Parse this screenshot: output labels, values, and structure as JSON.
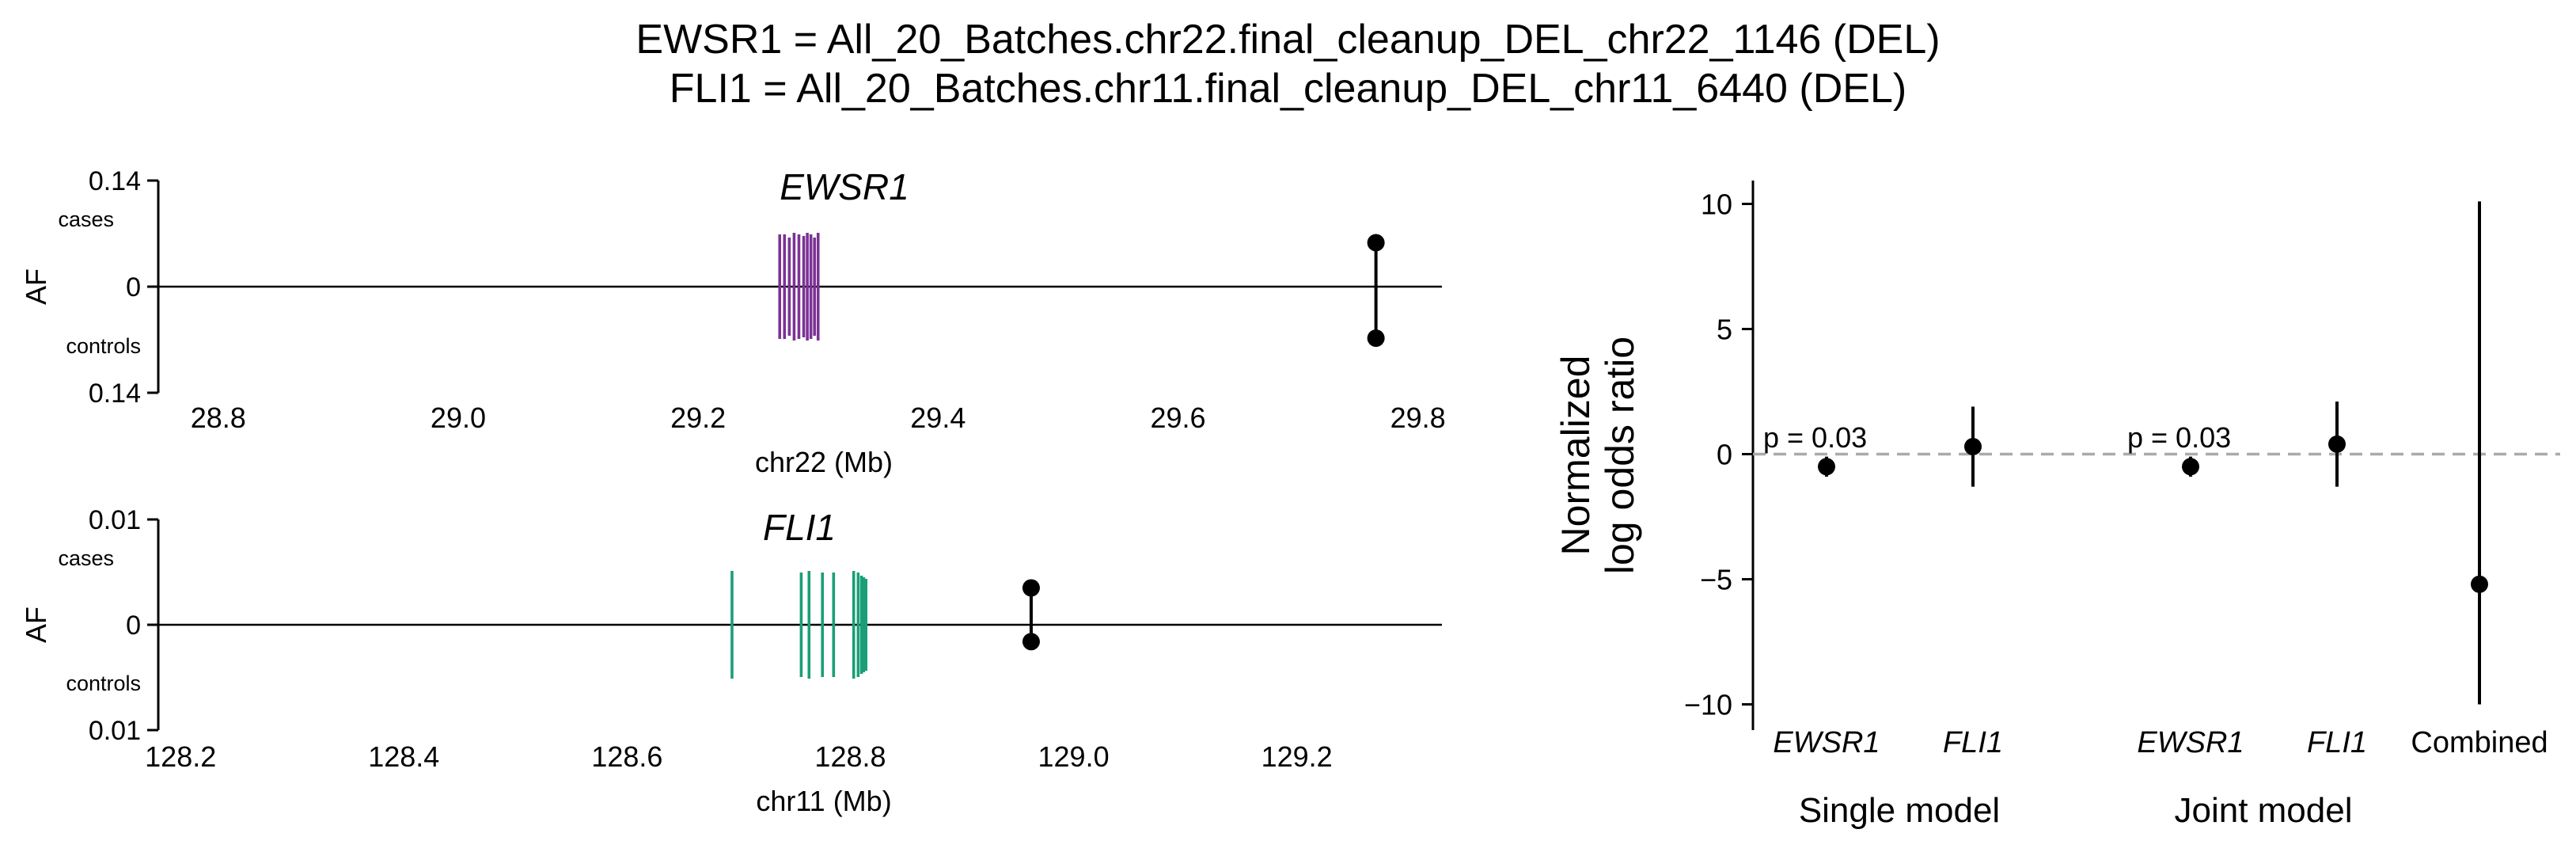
{
  "title": {
    "line1": "EWSR1 = All_20_Batches.chr22.final_cleanup_DEL_chr22_1146 (DEL)",
    "line2": "FLI1 = All_20_Batches.chr11.final_cleanup_DEL_chr11_6440 (DEL)"
  },
  "colors": {
    "ewsr1_exon": "#7b3294",
    "fli1_exon": "#1b9e77",
    "point": "#000000",
    "zero_line": "#aaaaaa"
  },
  "chart_data": [
    {
      "type": "scatter",
      "id": "ewsr1_af",
      "gene_label": "EWSR1",
      "ylabel": "AF",
      "xlabel": "chr22 (Mb)",
      "cases_label": "cases",
      "controls_label": "controls",
      "ytick_labels": [
        "0.14",
        "0",
        "0.14"
      ],
      "ymax": 0.14,
      "xlim": [
        28.75,
        29.82
      ],
      "xticks": [
        28.8,
        29.0,
        29.2,
        29.4,
        29.6,
        29.8
      ],
      "xtick_labels": [
        "28.8",
        "29.0",
        "29.2",
        "29.4",
        "29.6",
        "29.8"
      ],
      "exon_color_key": "ewsr1_exon",
      "exons": [
        29.268,
        29.272,
        29.276,
        29.28,
        29.284,
        29.288,
        29.291,
        29.294,
        29.297,
        29.3
      ],
      "variant": {
        "x": 29.765,
        "case_af": 0.058,
        "control_af": 0.068
      }
    },
    {
      "type": "scatter",
      "id": "fli1_af",
      "gene_label": "FLI1",
      "ylabel": "AF",
      "xlabel": "chr11 (Mb)",
      "cases_label": "cases",
      "controls_label": "controls",
      "ytick_labels": [
        "0.01",
        "0",
        "0.01"
      ],
      "ymax": 0.01,
      "xlim": [
        128.18,
        129.33
      ],
      "xticks": [
        128.2,
        128.4,
        128.6,
        128.8,
        129.0,
        129.2
      ],
      "xtick_labels": [
        "128.2",
        "128.4",
        "128.6",
        "128.8",
        "129.0",
        "129.2"
      ],
      "exon_color_key": "fli1_exon",
      "exons": [
        128.694,
        128.756,
        128.763,
        128.775,
        128.785,
        128.803,
        128.807,
        128.81,
        128.812,
        128.814
      ],
      "variant": {
        "x": 128.962,
        "case_af": 0.0035,
        "control_af": 0.0016
      }
    },
    {
      "type": "scatter",
      "id": "log_odds",
      "ylabel": [
        "Normalized",
        "log odds ratio"
      ],
      "ylim": [
        -11,
        11
      ],
      "yticks": [
        10,
        5,
        0,
        -5,
        -10
      ],
      "ytick_labels": [
        "10",
        "5",
        "0",
        "−5",
        "−10"
      ],
      "reference_line": 0,
      "groups": [
        "Single model",
        "Joint model"
      ],
      "points": [
        {
          "label": "EWSR1",
          "italic": true,
          "group": 0,
          "estimate": -0.5,
          "ci": [
            -0.9,
            -0.1
          ],
          "annotation": "p = 0.03"
        },
        {
          "label": "FLI1",
          "italic": true,
          "group": 0,
          "estimate": 0.3,
          "ci": [
            -1.3,
            1.9
          ],
          "annotation": ""
        },
        {
          "label": "EWSR1",
          "italic": true,
          "group": 1,
          "estimate": -0.5,
          "ci": [
            -0.9,
            -0.1
          ],
          "annotation": "p = 0.03"
        },
        {
          "label": "FLI1",
          "italic": true,
          "group": 1,
          "estimate": 0.4,
          "ci": [
            -1.3,
            2.1
          ],
          "annotation": ""
        },
        {
          "label": "Combined",
          "italic": false,
          "group": 1,
          "estimate": -5.2,
          "ci": [
            -10.0,
            10.1
          ],
          "annotation": ""
        }
      ]
    }
  ]
}
